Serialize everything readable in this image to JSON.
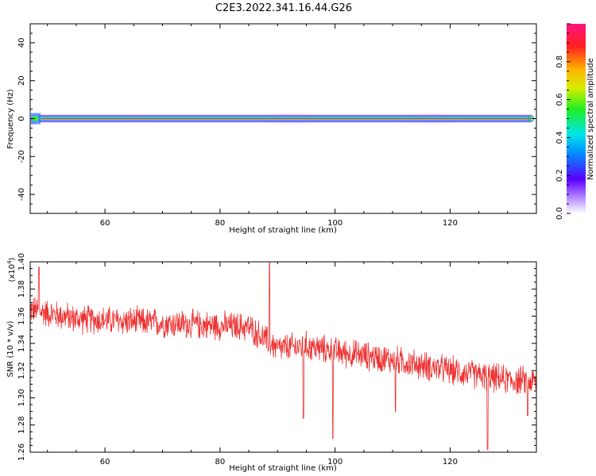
{
  "title": "C2E3.2022.341.16.44.G26",
  "colors": {
    "signal": "#ee3333",
    "axis": "#000000",
    "background": "#ffffff"
  },
  "chart_data": [
    {
      "type": "heatmap",
      "xlabel": "Height of straight line (km)",
      "ylabel": "Frequency (Hz)",
      "xlim": [
        47,
        135
      ],
      "ylim": [
        -50,
        50
      ],
      "xticks": [
        "60",
        "80",
        "100",
        "120"
      ],
      "yticks": [
        "40",
        "20",
        "0",
        "-20",
        "-40"
      ],
      "band_center_hz": 0,
      "colorbar": {
        "label": "Normalized spectral amplitude",
        "range": [
          0,
          1
        ],
        "ticks": [
          "0.0",
          "0.2",
          "0.4",
          "0.6",
          "0.8"
        ],
        "colormap": "rainbow (purple to red)"
      }
    },
    {
      "type": "line",
      "xlabel": "Height of straight line (km)",
      "ylabel": "SNR (10 * v/v)",
      "yscale_label": "(x10",
      "yscale_exp": "4",
      "yscale_close": ")",
      "xlim": [
        47,
        135
      ],
      "ylim": [
        1.26,
        1.4
      ],
      "xticks": [
        "60",
        "80",
        "100",
        "120"
      ],
      "yticks": [
        "1.40",
        "1.38",
        "1.36",
        "1.34",
        "1.32",
        "1.30",
        "1.28",
        "1.26"
      ],
      "trend": {
        "x": [
          47,
          55,
          65,
          75,
          85,
          90,
          95,
          100,
          110,
          120,
          130,
          135
        ],
        "y": [
          1.365,
          1.358,
          1.356,
          1.354,
          1.352,
          1.336,
          1.338,
          1.334,
          1.328,
          1.32,
          1.313,
          1.312
        ]
      },
      "noise_amplitude": 0.009,
      "spikes": [
        {
          "x": 48.5,
          "y": 1.396
        },
        {
          "x": 88.6,
          "y": 1.401
        },
        {
          "x": 94.5,
          "y": 1.285
        },
        {
          "x": 99.6,
          "y": 1.27
        },
        {
          "x": 110.5,
          "y": 1.29
        },
        {
          "x": 126.5,
          "y": 1.262
        },
        {
          "x": 133.5,
          "y": 1.287
        }
      ]
    }
  ]
}
